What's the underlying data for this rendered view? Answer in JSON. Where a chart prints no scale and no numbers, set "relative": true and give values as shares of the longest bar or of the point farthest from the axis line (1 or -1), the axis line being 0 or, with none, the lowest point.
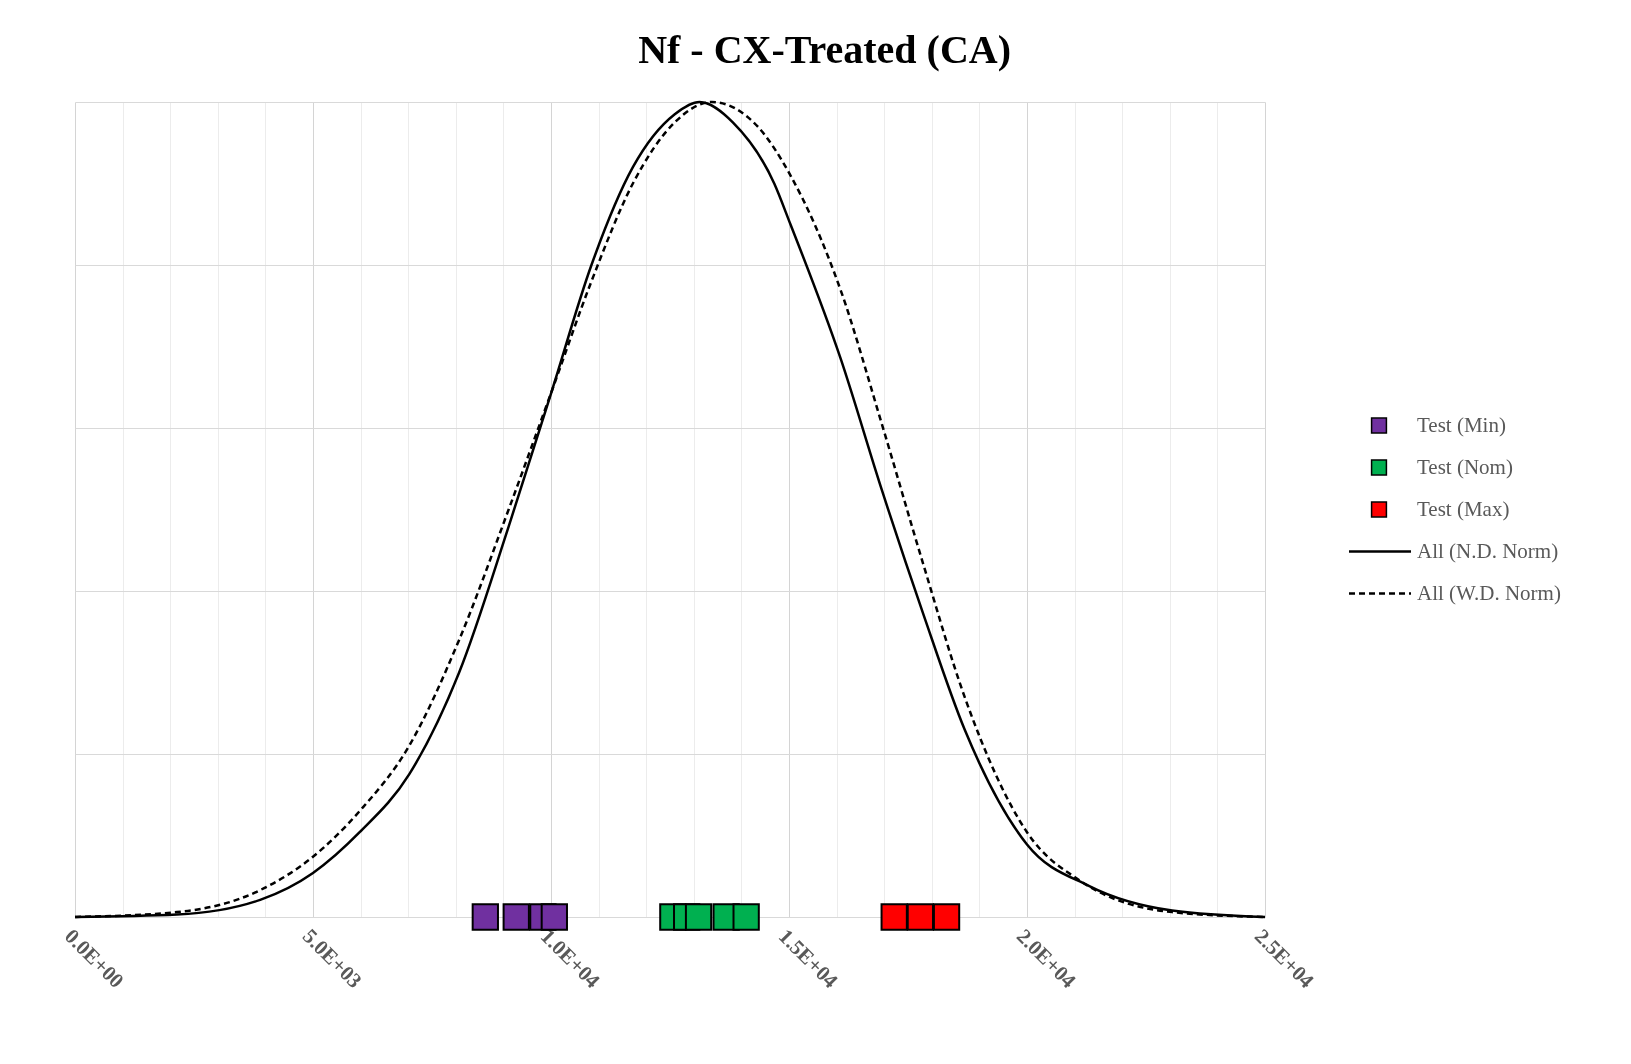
{
  "chart_data": {
    "type": "line",
    "title": "Nf - CX-Treated (CA)",
    "relative": true,
    "xlim": [
      0,
      25000
    ],
    "xticks": [
      {
        "value": 0,
        "label": "0.0E+00"
      },
      {
        "value": 1000,
        "label": null
      },
      {
        "value": 2000,
        "label": null
      },
      {
        "value": 3000,
        "label": null
      },
      {
        "value": 4000,
        "label": null
      },
      {
        "value": 5000,
        "label": "5.0E+03"
      },
      {
        "value": 6000,
        "label": null
      },
      {
        "value": 7000,
        "label": null
      },
      {
        "value": 8000,
        "label": null
      },
      {
        "value": 9000,
        "label": null
      },
      {
        "value": 10000,
        "label": "1.0E+04"
      },
      {
        "value": 11000,
        "label": null
      },
      {
        "value": 12000,
        "label": null
      },
      {
        "value": 13000,
        "label": null
      },
      {
        "value": 14000,
        "label": null
      },
      {
        "value": 15000,
        "label": "1.5E+04"
      },
      {
        "value": 16000,
        "label": null
      },
      {
        "value": 17000,
        "label": null
      },
      {
        "value": 18000,
        "label": null
      },
      {
        "value": 19000,
        "label": null
      },
      {
        "value": 20000,
        "label": "2.0E+04"
      },
      {
        "value": 21000,
        "label": null
      },
      {
        "value": 22000,
        "label": null
      },
      {
        "value": 23000,
        "label": null
      },
      {
        "value": 24000,
        "label": null
      },
      {
        "value": 25000,
        "label": "2.5E+04"
      }
    ],
    "grid": true,
    "legend": "right",
    "series": [
      {
        "name": "Test (Min)",
        "type": "scatter",
        "marker": "square",
        "color": "#7030a0",
        "x": [
          8620,
          9270,
          9830,
          10070
        ],
        "values": [
          0,
          0,
          0,
          0
        ]
      },
      {
        "name": "Test (Nom)",
        "type": "scatter",
        "marker": "square",
        "color": "#00b050",
        "x": [
          12560,
          12850,
          13100,
          13680,
          14100
        ],
        "values": [
          0,
          0,
          0,
          0,
          0
        ]
      },
      {
        "name": "Test (Max)",
        "type": "scatter",
        "marker": "square",
        "color": "#ff0000",
        "x": [
          17210,
          17760,
          18310
        ],
        "values": [
          0,
          0,
          0
        ]
      },
      {
        "name": "All (N.D. Norm)",
        "line_style": "solid",
        "color": "#000000",
        "x": [
          0,
          2140,
          3890,
          5000,
          5980,
          7020,
          8070,
          9110,
          10020,
          10850,
          11720,
          12600,
          13120,
          13820,
          14690,
          15030,
          16080,
          16950,
          17820,
          18690,
          20000,
          21310,
          23050,
          25000
        ],
        "values": [
          0,
          0.003,
          0.021,
          0.054,
          0.104,
          0.175,
          0.3,
          0.479,
          0.646,
          0.8,
          0.92,
          0.985,
          1,
          0.975,
          0.9,
          0.85,
          0.686,
          0.524,
          0.372,
          0.23,
          0.089,
          0.038,
          0.008,
          0
        ]
      },
      {
        "name": "All (W.D. Norm)",
        "line_style": "dashed",
        "color": "#000000",
        "x": [
          0,
          2140,
          3890,
          5000,
          5980,
          7020,
          8070,
          9110,
          10020,
          10850,
          11720,
          12600,
          13380,
          14340,
          15030,
          16080,
          16950,
          17820,
          18690,
          20000,
          21130,
          23050,
          25000
        ],
        "values": [
          0,
          0.006,
          0.033,
          0.074,
          0.13,
          0.21,
          0.34,
          0.5,
          0.646,
          0.78,
          0.9,
          0.975,
          1,
          0.97,
          0.91,
          0.77,
          0.605,
          0.433,
          0.27,
          0.104,
          0.044,
          0.006,
          0
        ]
      }
    ]
  }
}
